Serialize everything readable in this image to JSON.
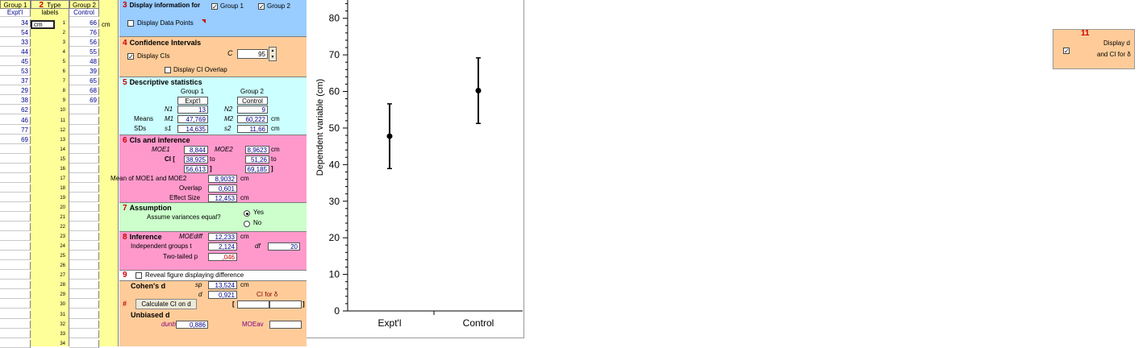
{
  "columns": {
    "group1_header": "Group 1",
    "type_header": "Type",
    "type_num": "2",
    "labels_sub": "labels",
    "group2_header": "Group 2",
    "group1_label": "Expt'l",
    "group2_label": "Control",
    "unit_input": "cm",
    "unit_side": "cm"
  },
  "group1_values": [
    "34",
    "54",
    "33",
    "44",
    "45",
    "53",
    "37",
    "29",
    "38",
    "62",
    "46",
    "77",
    "69"
  ],
  "group2_values": [
    "66",
    "76",
    "56",
    "55",
    "48",
    "39",
    "65",
    "68",
    "69"
  ],
  "row_numbers": [
    "1",
    "2",
    "3",
    "4",
    "5",
    "6",
    "7",
    "8",
    "9",
    "10",
    "11",
    "12",
    "13",
    "14",
    "15",
    "16",
    "17",
    "18",
    "19",
    "20",
    "21",
    "22",
    "23",
    "24",
    "25",
    "26",
    "27",
    "28",
    "29",
    "30",
    "31",
    "32",
    "33",
    "34"
  ],
  "panel3": {
    "num": "3",
    "title": "Display information for",
    "group1": "Group 1",
    "group2": "Group 2",
    "data_points": "Display Data Points"
  },
  "panel4": {
    "num": "4",
    "title": "Confidence Intervals",
    "display_cis": "Display CIs",
    "c_label": "C",
    "c_value": "95",
    "ci_overlap": "Display CI Overlap"
  },
  "panel5": {
    "num": "5",
    "title": "Descriptive statistics",
    "g1_head": "Group 1",
    "g2_head": "Group 2",
    "g1_name": "Expt'l",
    "g2_name": "Control",
    "n_label1": "N1",
    "n_label2": "N2",
    "n1": "13",
    "n2": "9",
    "means_label": "Means",
    "m_label1": "M1",
    "m_label2": "M2",
    "m1": "47,769",
    "m2": "60,222",
    "sds_label": "SDs",
    "s_label1": "s1",
    "s_label2": "s2",
    "s1": "14,635",
    "s2": "11,66",
    "unit": "cm"
  },
  "panel6": {
    "num": "6",
    "title": "CIs and inference",
    "moe_label1": "MOE1",
    "moe_label2": "MOE2",
    "moe1": "8,844",
    "moe2": "8,9623",
    "unit": "cm",
    "ci_label": "CI [",
    "ci1_low": "38,925",
    "ci2_low": "51,26",
    "to": "to",
    "ci1_high": "56,613",
    "ci2_high": "69,185",
    "bracket": "]",
    "mean_moe_label": "Mean of MOE1 and MOE2",
    "mean_moe": "8,9032",
    "overlap_label": "Overlap",
    "overlap": "0,601",
    "effect_label": "Effect Size",
    "effect": "12,453"
  },
  "panel7": {
    "num": "7",
    "title": "Assumption",
    "question": "Assume variances equal?",
    "yes": "Yes",
    "no": "No"
  },
  "panel8": {
    "num": "8",
    "title": "Inference",
    "moe_diff_label": "MOEdiff",
    "moe_diff": "12,233",
    "unit": "cm",
    "df_label": "df",
    "df": "20",
    "indep_label": "Independent groups t",
    "t": "2,124",
    "p_label": "Two-tailed p",
    "p": ",046"
  },
  "panel9": {
    "num": "9",
    "reveal": "Reveal figure displaying difference",
    "cohens": "Cohen's d",
    "sp_label": "sp",
    "sp": "13,524",
    "unit": "cm",
    "d_label": "d",
    "d": "0,921",
    "ci_delta": "CI for δ",
    "calc_btn": "Calculate CI on d",
    "unbiased": "Unbiased d",
    "dunb_label": "dunb",
    "dunb": "0,886",
    "moe_label": "MOEav",
    "bracket_open": "[",
    "bracket_close": "]",
    "hash": "#"
  },
  "panel11": {
    "num": "11",
    "display_d": "Display d",
    "ci_delta": "and CI for δ"
  },
  "chart_data": {
    "type": "scatter",
    "categories": [
      "Expt'l",
      "Control"
    ],
    "series": [
      {
        "values": [
          47.769,
          60.222
        ],
        "ci_low": [
          38.925,
          51.26
        ],
        "ci_high": [
          56.613,
          69.185
        ]
      }
    ],
    "ylabel": "Dependent variable (cm)",
    "ylim": [
      0,
      85
    ],
    "yticks": [
      0,
      10,
      20,
      30,
      40,
      50,
      60,
      70,
      80
    ],
    "xlabel": "",
    "colors": {
      "marker": "#000000"
    }
  },
  "colors": {
    "panel3": "#99ccff",
    "panel4": "#ffcc99",
    "panel5": "#ccffff",
    "panel6": "#ff99cc",
    "panel7": "#ccffcc",
    "panel9": "#ffcc99",
    "labels_col": "#ffff99",
    "accent_red": "#cc0000"
  }
}
